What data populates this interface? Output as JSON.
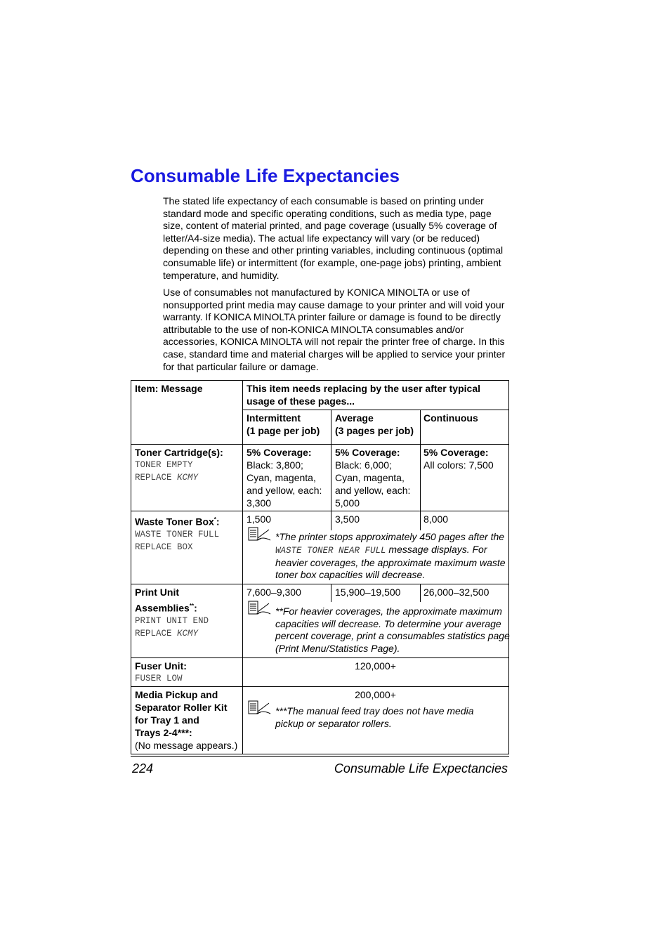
{
  "title": "Consumable Life Expectancies",
  "paragraphs": [
    "The stated life expectancy of each consumable is based on printing under standard mode and specific operating conditions, such as media type, page size, content of material printed, and page coverage (usually 5% coverage of letter/A4-size media). The actual life expectancy will vary (or be reduced) depending on these and other printing variables, including continuous (optimal consumable life) or intermittent (for example, one-page jobs) printing, ambient temperature, and humidity.",
    "Use of consumables not manufactured by KONICA MINOLTA or use of nonsupported print media may cause damage to your printer and will void your warranty. If KONICA MINOLTA printer failure or damage is found to be directly attributable to the use of non-KONICA MINOLTA consumables and/or accessories, KONICA MINOLTA will not repair the printer free of charge. In this case, standard time and material charges will be applied to service your printer for that particular failure or damage."
  ],
  "table": {
    "header_item": "Item: Message",
    "header_usage": "This item needs replacing by the user after typical usage of these pages...",
    "col_intermittent": [
      "Intermittent",
      "(1 page per job)"
    ],
    "col_average": [
      "Average",
      "(3 pages per job)"
    ],
    "col_continuous": "Continuous",
    "toner": {
      "name": "Toner Cartridge(s):",
      "msg1": "TONER EMPTY",
      "msg2": "REPLACE",
      "msg2i": "KCMY",
      "intermittent": [
        "5% Coverage:",
        "Black: 3,800;",
        "Cyan, magenta,",
        "and yellow, each:",
        "3,300"
      ],
      "average": [
        "5% Coverage:",
        "Black: 6,000;",
        "Cyan, magenta,",
        "and yellow, each:",
        "5,000"
      ],
      "continuous": [
        "5% Coverage:",
        "All colors: 7,500"
      ]
    },
    "waste": {
      "name": "Waste Toner Box",
      "mark": "*",
      "colon": ":",
      "msg1": "WASTE TONER FULL",
      "msg2": "REPLACE BOX",
      "values": [
        "1,500",
        "3,500",
        "8,000"
      ],
      "note_a": "*The printer stops approximately 450 pages after the",
      "note_mono": "WASTE TONER NEAR FULL",
      "note_b": "message displays. For heavier coverages, the approximate maximum waste toner box capacities will decrease."
    },
    "print_unit": {
      "name1": "Print Unit",
      "name2": "Assemblies",
      "mark": "**",
      "colon": ":",
      "msg1": "PRINT UNIT END",
      "msg2": "REPLACE",
      "msg2i": "KCMY",
      "values": [
        "7,600–9,300",
        "15,900–19,500",
        "26,000–32,500"
      ],
      "note": "**For heavier coverages, the approximate maximum capacities will decrease. To determine your average percent coverage, print a consumables statistics page (Print Menu/Statistics Page)."
    },
    "fuser": {
      "name": "Fuser Unit:",
      "msg": "FUSER LOW",
      "value": "120,000+"
    },
    "media": {
      "name": [
        "Media Pickup and",
        "Separator Roller Kit",
        "for Tray 1 and",
        "Trays 2-4***:"
      ],
      "msg": "(No message appears.)",
      "value": "200,000+",
      "note": "***The manual feed tray does not have media pickup or separator rollers."
    }
  },
  "footer": {
    "page_number": "224",
    "section": "Consumable Life Expectancies"
  },
  "icons": [
    "note-pencil-icon"
  ]
}
